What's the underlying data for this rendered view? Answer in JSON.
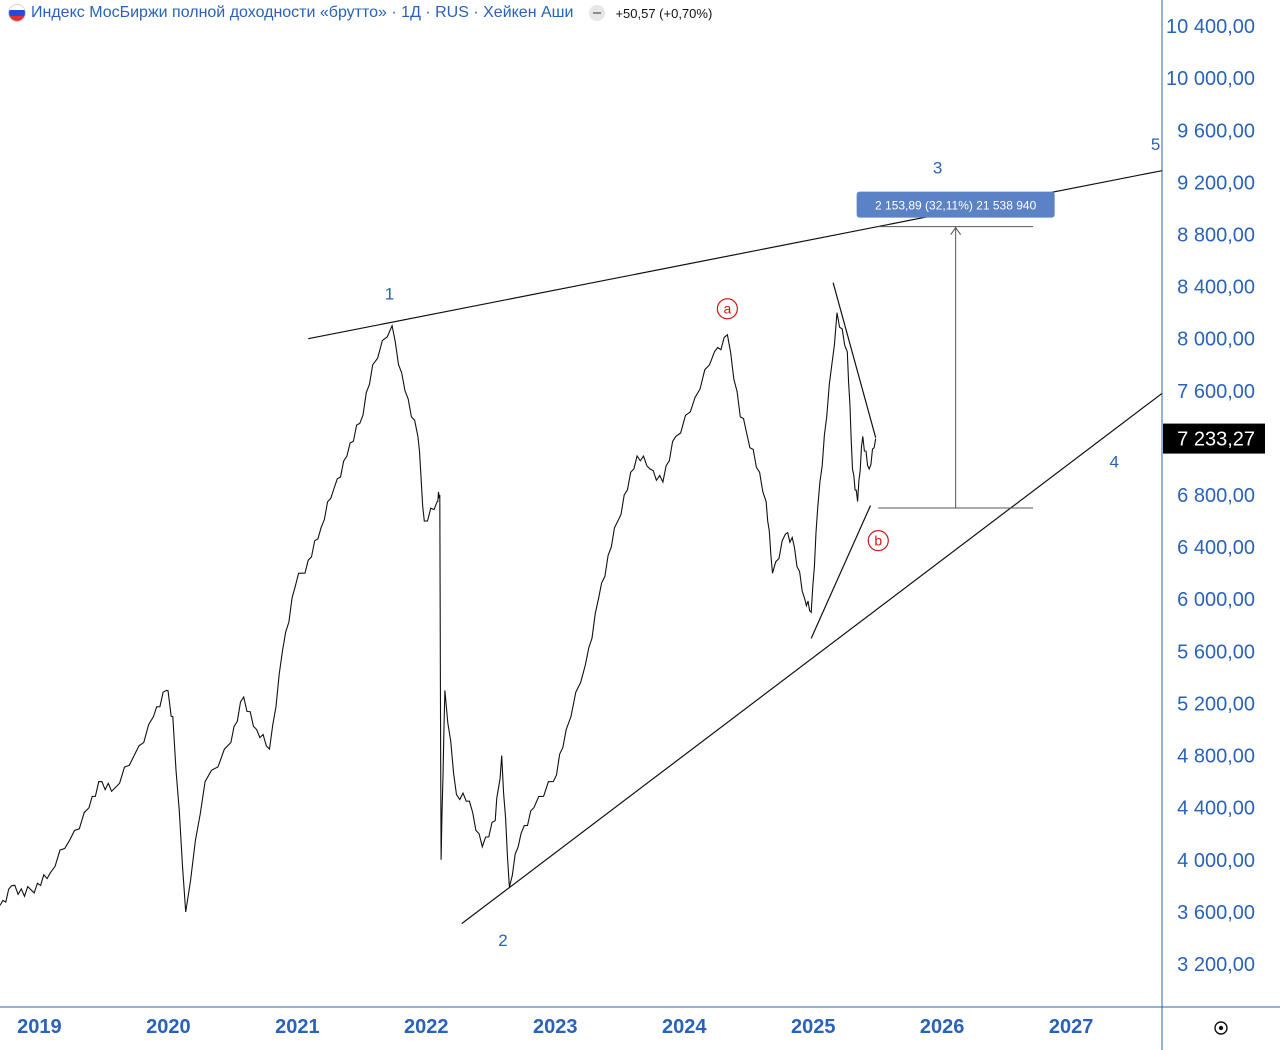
{
  "header": {
    "title": "Индекс МосБиржи полной доходности «брутто» · 1Д · RUS · Хейкен Аши",
    "change": "+50,57 (+0,70%)"
  },
  "colors": {
    "accent": "#2962b8",
    "price_line": "#111111",
    "annotation_red": "#cc1a1a",
    "last_price_bg": "#000000",
    "measure_box": "#5b82c4"
  },
  "icons": [
    "russia-flag-icon",
    "collapse-dot-icon",
    "settings-icon"
  ],
  "chart_data": {
    "type": "line",
    "title": "",
    "xlabel": "",
    "ylabel": "",
    "x_ticks": [
      "2019",
      "2020",
      "2021",
      "2022",
      "2023",
      "2024",
      "2025",
      "2026",
      "2027"
    ],
    "y_ticks": [
      "10 400,00",
      "10 000,00",
      "9 600,00",
      "9 200,00",
      "8 800,00",
      "8 400,00",
      "8 000,00",
      "7 600,00",
      "6 800,00",
      "6 400,00",
      "6 000,00",
      "5 600,00",
      "5 200,00",
      "4 800,00",
      "4 400,00",
      "4 000,00",
      "3 600,00",
      "3 200,00"
    ],
    "ylim": [
      2870,
      10600
    ],
    "xlim": [
      2018.71,
      2027.72
    ],
    "last_price": "7 233,27",
    "series": [
      {
        "points": [
          [
            2018.71,
            3650
          ],
          [
            2018.8,
            3800
          ],
          [
            2018.9,
            3720
          ],
          [
            2019.0,
            3820
          ],
          [
            2019.1,
            3900
          ],
          [
            2019.25,
            4150
          ],
          [
            2019.4,
            4400
          ],
          [
            2019.5,
            4600
          ],
          [
            2019.6,
            4550
          ],
          [
            2019.75,
            4800
          ],
          [
            2019.9,
            5100
          ],
          [
            2020.0,
            5300
          ],
          [
            2020.05,
            5100
          ],
          [
            2020.15,
            3600
          ],
          [
            2020.3,
            4600
          ],
          [
            2020.5,
            4900
          ],
          [
            2020.6,
            5250
          ],
          [
            2020.7,
            5000
          ],
          [
            2020.8,
            4850
          ],
          [
            2020.9,
            5600
          ],
          [
            2021.0,
            6100
          ],
          [
            2021.1,
            6300
          ],
          [
            2021.2,
            6550
          ],
          [
            2021.3,
            6850
          ],
          [
            2021.4,
            7100
          ],
          [
            2021.5,
            7350
          ],
          [
            2021.6,
            7800
          ],
          [
            2021.75,
            8100
          ],
          [
            2021.85,
            7600
          ],
          [
            2021.95,
            7250
          ],
          [
            2022.0,
            6600
          ],
          [
            2022.1,
            6750
          ],
          [
            2022.12,
            6800
          ],
          [
            2022.13,
            4000
          ],
          [
            2022.16,
            5300
          ],
          [
            2022.25,
            4500
          ],
          [
            2022.35,
            4450
          ],
          [
            2022.45,
            4100
          ],
          [
            2022.55,
            4300
          ],
          [
            2022.6,
            4800
          ],
          [
            2022.66,
            3790
          ],
          [
            2022.75,
            4200
          ],
          [
            2022.85,
            4400
          ],
          [
            2023.0,
            4600
          ],
          [
            2023.1,
            5000
          ],
          [
            2023.25,
            5500
          ],
          [
            2023.35,
            6000
          ],
          [
            2023.45,
            6400
          ],
          [
            2023.55,
            6800
          ],
          [
            2023.65,
            7100
          ],
          [
            2023.75,
            7000
          ],
          [
            2023.85,
            6900
          ],
          [
            2023.95,
            7250
          ],
          [
            2024.1,
            7550
          ],
          [
            2024.25,
            7900
          ],
          [
            2024.35,
            8030
          ],
          [
            2024.45,
            7400
          ],
          [
            2024.55,
            7150
          ],
          [
            2024.65,
            6750
          ],
          [
            2024.7,
            6200
          ],
          [
            2024.8,
            6500
          ],
          [
            2024.87,
            6400
          ],
          [
            2024.95,
            6000
          ],
          [
            2025.0,
            5900
          ],
          [
            2025.05,
            6700
          ],
          [
            2025.12,
            7400
          ],
          [
            2025.2,
            8200
          ],
          [
            2025.28,
            7900
          ],
          [
            2025.32,
            7000
          ],
          [
            2025.36,
            6750
          ],
          [
            2025.4,
            7250
          ],
          [
            2025.45,
            7000
          ],
          [
            2025.5,
            7233
          ]
        ]
      }
    ],
    "waves": [
      {
        "label": "1",
        "x": 2021.73,
        "y": 8300
      },
      {
        "label": "2",
        "x": 2022.61,
        "y": 3340
      },
      {
        "label": "3",
        "x": 2025.98,
        "y": 9270
      },
      {
        "label": "4",
        "x": 2027.35,
        "y": 7010
      },
      {
        "label": "5",
        "x": 2027.67,
        "y": 9450
      }
    ],
    "circled_labels": [
      {
        "label": "a",
        "x": 2024.35,
        "y": 8230
      },
      {
        "label": "b",
        "x": 2025.52,
        "y": 6450
      }
    ],
    "measure": {
      "label": "2 153,89 (32,11%) 21 538 940",
      "from_x": 2025.52,
      "to_x": 2026.72,
      "low": 6700,
      "high": 8860
    },
    "trendlines": [
      {
        "name": "upper-channel",
        "from": [
          2021.1,
          8000
        ],
        "to": [
          2027.72,
          9290
        ]
      },
      {
        "name": "lower-channel",
        "from": [
          2022.29,
          3510
        ],
        "to": [
          2027.72,
          7580
        ]
      },
      {
        "name": "triangle-upper",
        "from": [
          2025.17,
          8430
        ],
        "to": [
          2025.5,
          7240
        ]
      },
      {
        "name": "triangle-lower",
        "from": [
          2025.0,
          5700
        ],
        "to": [
          2025.46,
          6720
        ]
      }
    ]
  }
}
